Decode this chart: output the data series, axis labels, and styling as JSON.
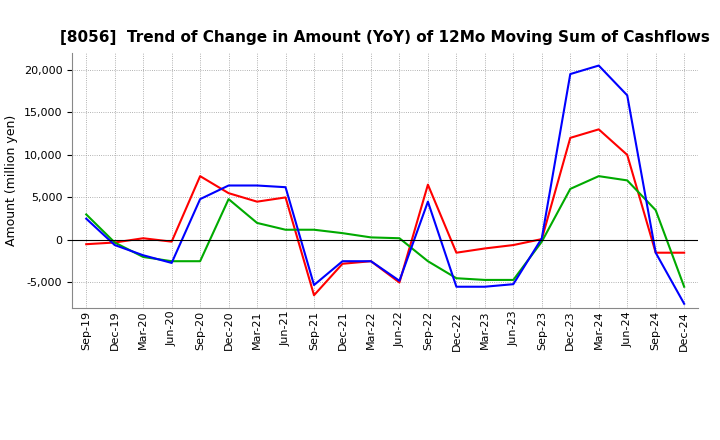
{
  "title": "[8056]  Trend of Change in Amount (YoY) of 12Mo Moving Sum of Cashflows",
  "ylabel": "Amount (million yen)",
  "x_labels": [
    "Sep-19",
    "Dec-19",
    "Mar-20",
    "Jun-20",
    "Sep-20",
    "Dec-20",
    "Mar-21",
    "Jun-21",
    "Sep-21",
    "Dec-21",
    "Mar-22",
    "Jun-22",
    "Sep-22",
    "Dec-22",
    "Mar-23",
    "Jun-23",
    "Sep-23",
    "Dec-23",
    "Mar-24",
    "Jun-24",
    "Sep-24",
    "Dec-24"
  ],
  "operating": [
    -500,
    -300,
    200,
    -200,
    7500,
    5500,
    4500,
    5000,
    -6500,
    -2800,
    -2500,
    -5000,
    6500,
    -1500,
    -1000,
    -600,
    100,
    12000,
    13000,
    10000,
    -1500,
    -1500
  ],
  "investing": [
    3000,
    -300,
    -2000,
    -2500,
    -2500,
    4800,
    2000,
    1200,
    1200,
    800,
    300,
    200,
    -2500,
    -4500,
    -4700,
    -4700,
    -200,
    6000,
    7500,
    7000,
    3500,
    -5500
  ],
  "free": [
    2500,
    -600,
    -1800,
    -2700,
    4800,
    6400,
    6400,
    6200,
    -5300,
    -2500,
    -2500,
    -4800,
    4500,
    -5500,
    -5500,
    -5200,
    200,
    19500,
    20500,
    17000,
    -1500,
    -7500
  ],
  "operating_color": "#ff0000",
  "investing_color": "#00aa00",
  "free_color": "#0000ff",
  "ylim": [
    -8000,
    22000
  ],
  "yticks": [
    -5000,
    0,
    5000,
    10000,
    15000,
    20000
  ],
  "background_color": "#ffffff",
  "grid_color": "#999999",
  "title_fontsize": 11,
  "axis_fontsize": 9,
  "tick_fontsize": 8
}
